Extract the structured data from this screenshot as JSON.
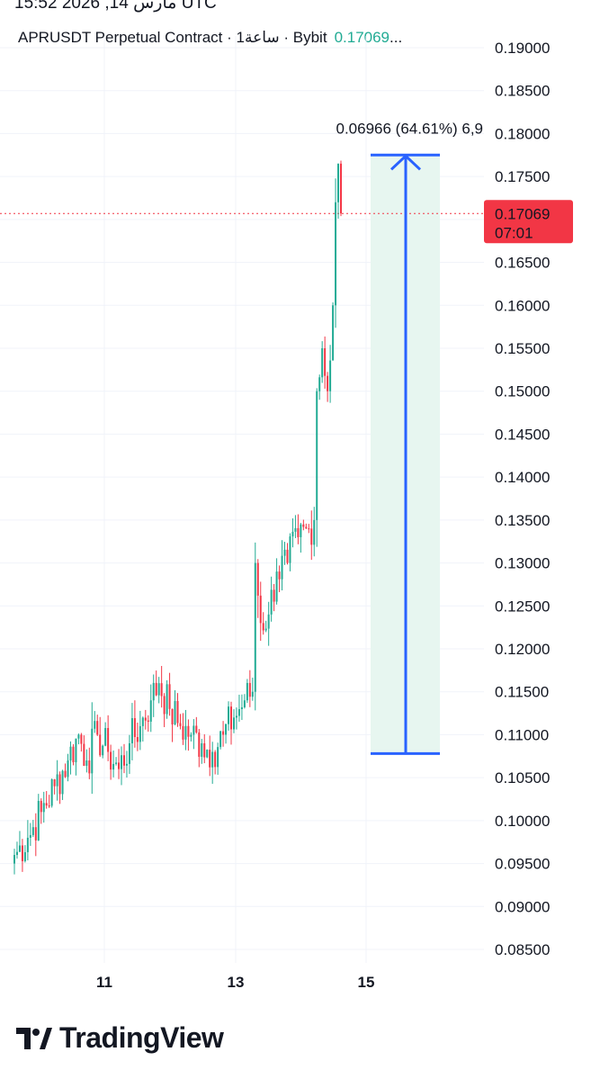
{
  "timestamp": "مارس 14, 2026 15:52 UTC",
  "header": {
    "symbol": "APRUSDT Perpetual Contract · 1ساعة · Bybit",
    "last_price": "0.17069",
    "ellipsis": "..."
  },
  "price_label": {
    "value": "0.17069",
    "countdown": "07:01"
  },
  "measure_label": "0.06966 (64.61%) 6,9",
  "brand": "TradingView",
  "colors": {
    "up": "#22ab94",
    "down": "#f23645",
    "measure": "#2962ff",
    "measure_fill": "#e7f6f0",
    "price_line": "#f23645"
  },
  "chart_data": {
    "type": "candlestick",
    "interval": "1h",
    "y_axis": {
      "ticks": [
        "0.19000",
        "0.18500",
        "0.18000",
        "0.17500",
        "0.17000",
        "0.16500",
        "0.16000",
        "0.15500",
        "0.15000",
        "0.14500",
        "0.14000",
        "0.13500",
        "0.13000",
        "0.12500",
        "0.12000",
        "0.11500",
        "0.11000",
        "0.10500",
        "0.10000",
        "0.09500",
        "0.09000",
        "0.08500"
      ],
      "range": [
        0.085,
        0.19
      ]
    },
    "x_axis": {
      "ticks": [
        "11",
        "13",
        "15"
      ]
    },
    "current_price": 0.17069,
    "measure": {
      "from": 0.1078,
      "to": 0.1775,
      "change": 0.06966,
      "percent": 64.61
    },
    "anchors": [
      [
        0,
        0.096
      ],
      [
        5,
        0.098
      ],
      [
        10,
        0.101
      ],
      [
        15,
        0.104
      ],
      [
        20,
        0.107
      ],
      [
        24,
        0.11
      ],
      [
        27,
        0.107
      ],
      [
        31,
        0.11
      ],
      [
        35,
        0.108
      ],
      [
        39,
        0.106
      ],
      [
        43,
        0.109
      ],
      [
        47,
        0.111
      ],
      [
        51,
        0.114
      ],
      [
        54,
        0.116
      ],
      [
        58,
        0.113
      ],
      [
        62,
        0.111
      ],
      [
        66,
        0.11
      ],
      [
        70,
        0.109
      ],
      [
        74,
        0.108
      ],
      [
        78,
        0.11
      ],
      [
        82,
        0.112
      ],
      [
        86,
        0.114
      ],
      [
        89,
        0.115
      ],
      [
        90,
        0.13
      ],
      [
        92,
        0.123
      ],
      [
        95,
        0.124
      ],
      [
        98,
        0.129
      ],
      [
        102,
        0.13
      ],
      [
        106,
        0.133
      ],
      [
        110,
        0.134
      ],
      [
        112,
        0.135
      ],
      [
        113,
        0.15
      ],
      [
        115,
        0.155
      ],
      [
        117,
        0.15
      ],
      [
        119,
        0.16
      ],
      [
        120,
        0.172
      ],
      [
        121,
        0.1765
      ],
      [
        122,
        0.1707
      ]
    ]
  }
}
